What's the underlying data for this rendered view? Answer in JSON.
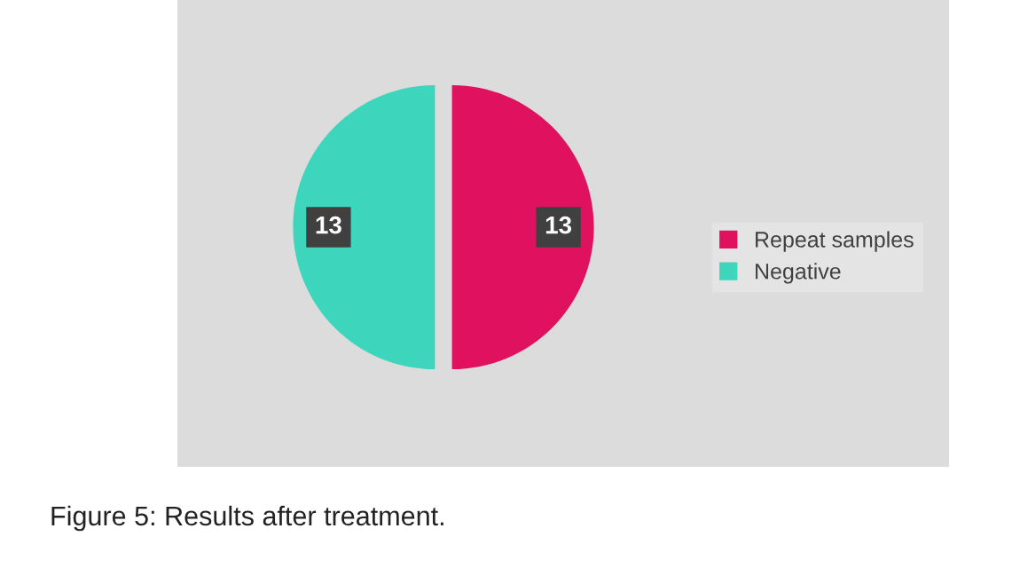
{
  "chart_data": {
    "type": "pie",
    "categories": [
      "Repeat samples",
      "Negative"
    ],
    "values": [
      13,
      13
    ],
    "colors": [
      "#e0115f",
      "#3dd6bc"
    ],
    "data_labels": true,
    "legend": "right",
    "annotations": [
      "Figure 5: Results after treatment."
    ]
  }
}
